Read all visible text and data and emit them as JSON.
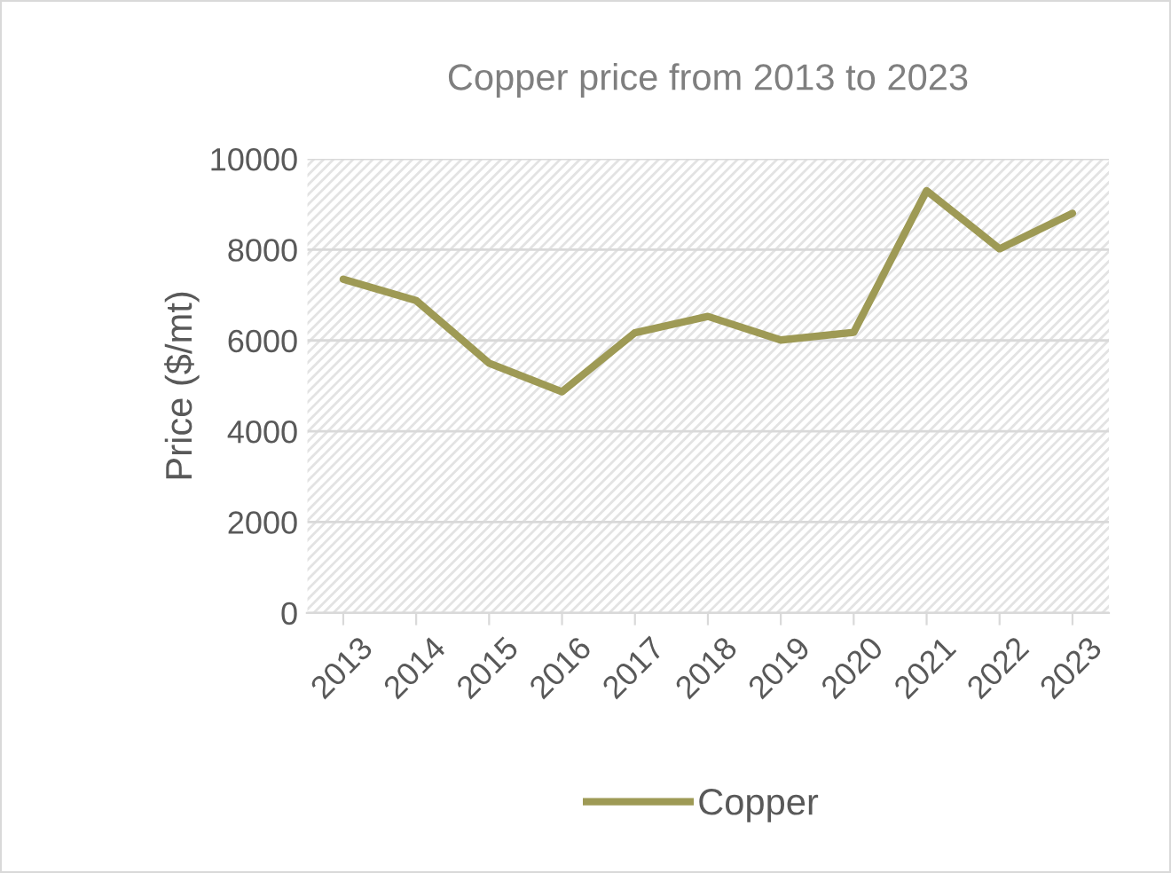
{
  "chart_data": {
    "type": "line",
    "title": "Copper price from 2013 to 2023",
    "ylabel": "Price ($/mt)",
    "categories": [
      "2013",
      "2014",
      "2015",
      "2016",
      "2017",
      "2018",
      "2019",
      "2020",
      "2021",
      "2022",
      "2023"
    ],
    "series": [
      {
        "name": "Copper",
        "color": "#9e9a55",
        "values": [
          7350,
          6880,
          5500,
          4870,
          6170,
          6530,
          6010,
          6180,
          9300,
          8020,
          8800
        ]
      }
    ],
    "ylim": [
      0,
      10000
    ],
    "yticks": [
      {
        "value": 0,
        "label": "0"
      },
      {
        "value": 2000,
        "label": "2000"
      },
      {
        "value": 4000,
        "label": "4000"
      },
      {
        "value": 6000,
        "label": "6000"
      },
      {
        "value": 8000,
        "label": "8000"
      },
      {
        "value": 10000,
        "label": "10000"
      }
    ],
    "grid": "y",
    "legend": "bottom",
    "marker": "none",
    "line_style": "solid"
  }
}
